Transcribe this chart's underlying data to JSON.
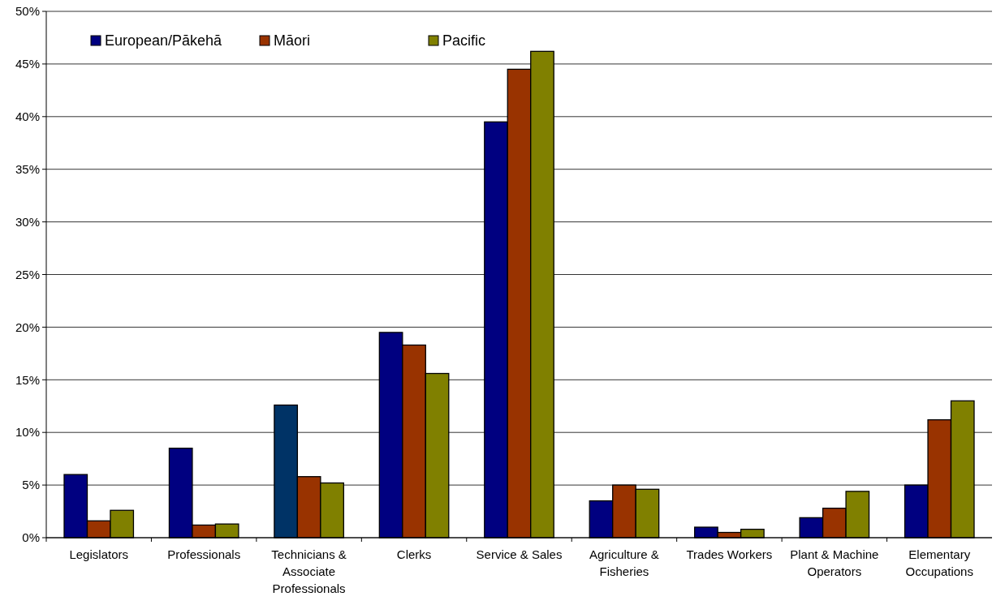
{
  "chart_data": {
    "type": "bar",
    "categories": [
      "Legislators",
      "Professionals",
      "Technicians & Associate Professionals",
      "Clerks",
      "Service & Sales",
      "Agriculture & Fisheries",
      "Trades Workers",
      "Plant & Machine Operators",
      "Elementary Occupations"
    ],
    "series": [
      {
        "name": "European/Pākehā",
        "color": "#000080",
        "colors": [
          "#000080",
          "#000080",
          "#003366",
          "#000080",
          "#000080",
          "#000080",
          "#000080",
          "#000080",
          "#000080"
        ],
        "values": [
          6.0,
          8.5,
          12.6,
          19.5,
          39.5,
          3.5,
          1.0,
          1.9,
          5.0
        ]
      },
      {
        "name": "Māori",
        "color": "#993300",
        "values": [
          1.6,
          1.2,
          5.8,
          18.3,
          44.5,
          5.0,
          0.5,
          2.8,
          11.2
        ]
      },
      {
        "name": "Pacific",
        "color": "#808000",
        "values": [
          2.6,
          1.3,
          5.2,
          15.6,
          46.2,
          4.6,
          0.8,
          4.4,
          13.0
        ]
      }
    ],
    "ylim": [
      0,
      50
    ],
    "yticks": [
      {
        "value": 0,
        "label": "0%"
      },
      {
        "value": 5,
        "label": "5%"
      },
      {
        "value": 10,
        "label": "10%"
      },
      {
        "value": 15,
        "label": "15%"
      },
      {
        "value": 20,
        "label": "20%"
      },
      {
        "value": 25,
        "label": "25%"
      },
      {
        "value": 30,
        "label": "30%"
      },
      {
        "value": 35,
        "label": "35%"
      },
      {
        "value": 40,
        "label": "40%"
      },
      {
        "value": 45,
        "label": "45%"
      },
      {
        "value": 50,
        "label": "50%"
      }
    ],
    "grid": "y",
    "legend": "top left"
  }
}
